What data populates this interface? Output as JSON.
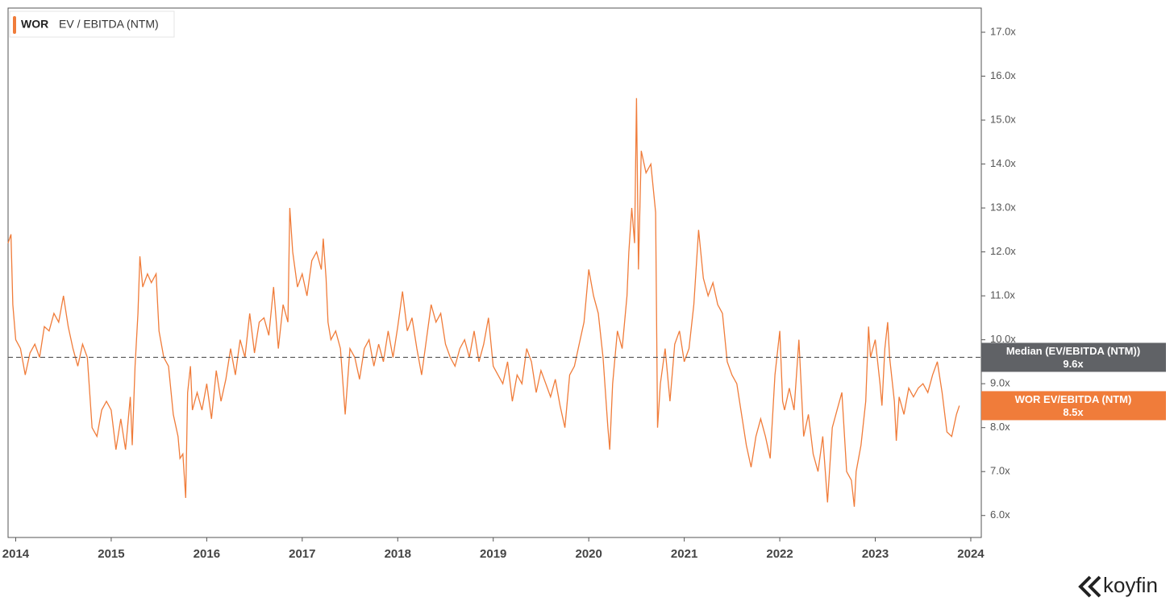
{
  "chart_data": {
    "type": "line",
    "legend_ticker": "WOR",
    "legend_label": "EV / EBITDA (NTM)",
    "x": [
      2013.92,
      2013.95,
      2013.97,
      2014.0,
      2014.05,
      2014.1,
      2014.15,
      2014.2,
      2014.25,
      2014.3,
      2014.35,
      2014.4,
      2014.45,
      2014.5,
      2014.55,
      2014.6,
      2014.65,
      2014.7,
      2014.75,
      2014.8,
      2014.85,
      2014.9,
      2014.95,
      2015.0,
      2015.05,
      2015.1,
      2015.15,
      2015.2,
      2015.22,
      2015.25,
      2015.28,
      2015.3,
      2015.33,
      2015.38,
      2015.42,
      2015.47,
      2015.5,
      2015.55,
      2015.6,
      2015.65,
      2015.7,
      2015.72,
      2015.75,
      2015.78,
      2015.8,
      2015.83,
      2015.85,
      2015.9,
      2015.95,
      2016.0,
      2016.05,
      2016.1,
      2016.15,
      2016.2,
      2016.25,
      2016.3,
      2016.35,
      2016.4,
      2016.45,
      2016.5,
      2016.55,
      2016.6,
      2016.65,
      2016.7,
      2016.75,
      2016.8,
      2016.85,
      2016.87,
      2016.9,
      2016.95,
      2017.0,
      2017.05,
      2017.1,
      2017.15,
      2017.2,
      2017.22,
      2017.25,
      2017.27,
      2017.3,
      2017.35,
      2017.4,
      2017.45,
      2017.5,
      2017.55,
      2017.6,
      2017.65,
      2017.7,
      2017.75,
      2017.8,
      2017.85,
      2017.9,
      2017.95,
      2018.0,
      2018.05,
      2018.1,
      2018.15,
      2018.2,
      2018.25,
      2018.3,
      2018.35,
      2018.4,
      2018.45,
      2018.5,
      2018.55,
      2018.6,
      2018.65,
      2018.7,
      2018.75,
      2018.8,
      2018.85,
      2018.9,
      2018.95,
      2019.0,
      2019.05,
      2019.1,
      2019.15,
      2019.2,
      2019.25,
      2019.3,
      2019.35,
      2019.4,
      2019.45,
      2019.5,
      2019.55,
      2019.6,
      2019.65,
      2019.7,
      2019.75,
      2019.8,
      2019.85,
      2019.9,
      2019.95,
      2020.0,
      2020.05,
      2020.1,
      2020.15,
      2020.2,
      2020.22,
      2020.25,
      2020.3,
      2020.35,
      2020.4,
      2020.42,
      2020.45,
      2020.48,
      2020.5,
      2020.52,
      2020.55,
      2020.6,
      2020.65,
      2020.7,
      2020.72,
      2020.75,
      2020.8,
      2020.85,
      2020.9,
      2020.95,
      2021.0,
      2021.05,
      2021.1,
      2021.15,
      2021.2,
      2021.25,
      2021.3,
      2021.35,
      2021.4,
      2021.45,
      2021.5,
      2021.55,
      2021.6,
      2021.65,
      2021.7,
      2021.75,
      2021.8,
      2021.85,
      2021.9,
      2021.95,
      2022.0,
      2022.03,
      2022.05,
      2022.1,
      2022.15,
      2022.2,
      2022.25,
      2022.3,
      2022.35,
      2022.4,
      2022.45,
      2022.5,
      2022.55,
      2022.6,
      2022.65,
      2022.7,
      2022.75,
      2022.78,
      2022.8,
      2022.85,
      2022.9,
      2022.93,
      2022.95,
      2023.0,
      2023.05,
      2023.07,
      2023.1,
      2023.13,
      2023.15,
      2023.2,
      2023.22,
      2023.25,
      2023.3,
      2023.35,
      2023.4,
      2023.45,
      2023.5,
      2023.55,
      2023.6,
      2023.65,
      2023.7,
      2023.75,
      2023.8,
      2023.85,
      2023.88
    ],
    "series": [
      {
        "name": "WOR EV/EBITDA (NTM)",
        "color": "#f07c3a",
        "value_label": "8.5x",
        "current_value": 8.5,
        "values": [
          12.2,
          12.4,
          10.8,
          10.0,
          9.8,
          9.2,
          9.7,
          9.9,
          9.6,
          10.3,
          10.2,
          10.6,
          10.4,
          11.0,
          10.3,
          9.8,
          9.4,
          9.9,
          9.6,
          8.0,
          7.8,
          8.4,
          8.6,
          8.4,
          7.5,
          8.2,
          7.5,
          8.7,
          7.6,
          9.4,
          10.6,
          11.9,
          11.2,
          11.5,
          11.3,
          11.5,
          10.2,
          9.6,
          9.4,
          8.3,
          7.8,
          7.3,
          7.4,
          6.4,
          8.8,
          9.4,
          8.4,
          8.8,
          8.4,
          9.0,
          8.2,
          9.3,
          8.6,
          9.1,
          9.8,
          9.2,
          10.0,
          9.6,
          10.6,
          9.7,
          10.4,
          10.5,
          10.1,
          11.2,
          9.8,
          10.8,
          10.4,
          13.0,
          12.0,
          11.2,
          11.5,
          11.0,
          11.8,
          12.0,
          11.6,
          12.3,
          11.4,
          10.4,
          10.0,
          10.2,
          9.8,
          8.3,
          9.8,
          9.6,
          9.1,
          9.8,
          10.0,
          9.4,
          9.9,
          9.5,
          10.2,
          9.6,
          10.3,
          11.1,
          10.2,
          10.5,
          9.8,
          9.2,
          10.0,
          10.8,
          10.4,
          10.6,
          9.9,
          9.6,
          9.4,
          9.8,
          10.0,
          9.6,
          10.2,
          9.5,
          9.9,
          10.5,
          9.4,
          9.2,
          9.0,
          9.5,
          8.6,
          9.2,
          9.0,
          9.8,
          9.5,
          8.8,
          9.3,
          9.0,
          8.7,
          9.1,
          8.5,
          8.0,
          9.2,
          9.4,
          9.9,
          10.4,
          11.6,
          11.0,
          10.6,
          9.6,
          8.0,
          7.5,
          9.0,
          10.2,
          9.8,
          11.0,
          12.0,
          13.0,
          12.2,
          15.5,
          11.6,
          14.3,
          13.8,
          14.0,
          12.9,
          8.0,
          9.0,
          9.8,
          8.6,
          9.9,
          10.2,
          9.5,
          9.8,
          10.8,
          12.5,
          11.4,
          11.0,
          11.3,
          10.8,
          10.6,
          9.5,
          9.2,
          9.0,
          8.3,
          7.6,
          7.1,
          7.8,
          8.2,
          7.8,
          7.3,
          9.2,
          10.2,
          8.6,
          8.4,
          8.9,
          8.4,
          10.0,
          7.8,
          8.3,
          7.4,
          7.0,
          7.8,
          6.3,
          8.0,
          8.4,
          8.8,
          7.0,
          6.8,
          6.2,
          7.0,
          7.6,
          8.6,
          10.3,
          9.6,
          10.0,
          9.0,
          8.5,
          9.8,
          10.4,
          9.6,
          8.6,
          7.7,
          8.7,
          8.3,
          8.9,
          8.7,
          8.9,
          9.0,
          8.8,
          9.2,
          9.5,
          8.8,
          7.9,
          7.8,
          8.3,
          8.5
        ]
      }
    ],
    "median": {
      "name": "Median (EV/EBITDA (NTM))",
      "value": 9.6,
      "label": "9.6x"
    },
    "xlim": [
      2013.92,
      2024.11
    ],
    "xticks": [
      2014,
      2015,
      2016,
      2017,
      2018,
      2019,
      2020,
      2021,
      2022,
      2023,
      2024
    ],
    "ylim": [
      5.5,
      17.55
    ],
    "yticks": [
      {
        "value": 6,
        "label": "6.0x"
      },
      {
        "value": 7,
        "label": "7.0x"
      },
      {
        "value": 8,
        "label": "8.0x"
      },
      {
        "value": 9,
        "label": "9.0x"
      },
      {
        "value": 10,
        "label": "10.0x"
      },
      {
        "value": 11,
        "label": "11.0x"
      },
      {
        "value": 12,
        "label": "12.0x"
      },
      {
        "value": 13,
        "label": "13.0x"
      },
      {
        "value": 14,
        "label": "14.0x"
      },
      {
        "value": 15,
        "label": "15.0x"
      },
      {
        "value": 16,
        "label": "16.0x"
      },
      {
        "value": 17,
        "label": "17.0x"
      }
    ],
    "grid": false,
    "brand": "koyfin"
  }
}
